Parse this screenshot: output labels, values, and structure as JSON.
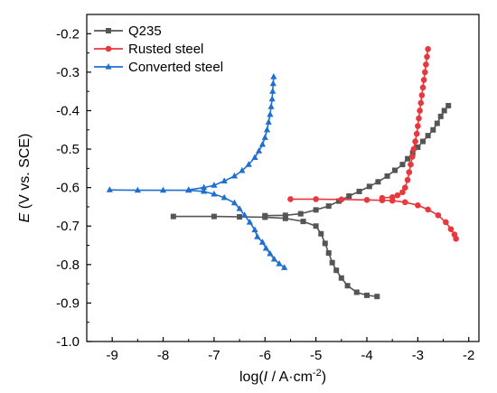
{
  "chart_data": {
    "type": "line",
    "xlabel_prefix": "log(",
    "xlabel_italic": "I",
    "xlabel_suffix": " / A·cm",
    "xlabel_sup": "-2",
    "xlabel_close": ")",
    "ylabel_italic": "E",
    "ylabel_rest": " (V vs. SCE)",
    "xlim": [
      -9.5,
      -1.8
    ],
    "ylim": [
      -1.0,
      -0.15
    ],
    "xticks": [
      -9,
      -8,
      -7,
      -6,
      -5,
      -4,
      -3,
      -2
    ],
    "xtick_labels": [
      "-9",
      "-8",
      "-7",
      "-6",
      "-5",
      "-4",
      "-3",
      "-2"
    ],
    "yticks": [
      -1.0,
      -0.9,
      -0.8,
      -0.7,
      -0.6,
      -0.5,
      -0.4,
      -0.3,
      -0.2
    ],
    "ytick_labels": [
      "-1.0",
      "-0.9",
      "-0.8",
      "-0.7",
      "-0.6",
      "-0.5",
      "-0.4",
      "-0.3",
      "-0.2"
    ],
    "legend_position": "top-left",
    "grid": false,
    "series": [
      {
        "name": "Q235",
        "color": "#555555",
        "marker": "square",
        "points": [
          [
            -7.8,
            -0.675
          ],
          [
            -7.0,
            -0.675
          ],
          [
            -6.5,
            -0.676
          ],
          [
            -6.0,
            -0.677
          ],
          [
            -5.6,
            -0.68
          ],
          [
            -5.25,
            -0.688
          ],
          [
            -5.0,
            -0.7
          ],
          [
            -4.9,
            -0.72
          ],
          [
            -4.82,
            -0.745
          ],
          [
            -4.75,
            -0.77
          ],
          [
            -4.68,
            -0.795
          ],
          [
            -4.6,
            -0.815
          ],
          [
            -4.5,
            -0.835
          ],
          [
            -4.38,
            -0.855
          ],
          [
            -4.2,
            -0.872
          ],
          [
            -4.0,
            -0.88
          ],
          [
            -3.8,
            -0.883
          ],
          [
            -6.0,
            -0.673
          ],
          [
            -5.6,
            -0.672
          ],
          [
            -5.3,
            -0.668
          ],
          [
            -5.0,
            -0.658
          ],
          [
            -4.75,
            -0.648
          ],
          [
            -4.55,
            -0.635
          ],
          [
            -4.35,
            -0.622
          ],
          [
            -4.15,
            -0.61
          ],
          [
            -3.95,
            -0.597
          ],
          [
            -3.78,
            -0.585
          ],
          [
            -3.6,
            -0.57
          ],
          [
            -3.45,
            -0.555
          ],
          [
            -3.3,
            -0.54
          ],
          [
            -3.2,
            -0.525
          ],
          [
            -3.1,
            -0.51
          ],
          [
            -3.0,
            -0.495
          ],
          [
            -2.9,
            -0.48
          ],
          [
            -2.8,
            -0.465
          ],
          [
            -2.7,
            -0.45
          ],
          [
            -2.62,
            -0.433
          ],
          [
            -2.55,
            -0.415
          ],
          [
            -2.48,
            -0.4
          ],
          [
            -2.4,
            -0.387
          ]
        ],
        "segments": [
          [
            0,
            16
          ],
          [
            17,
            39
          ]
        ]
      },
      {
        "name": "Rusted steel",
        "color": "#e8383d",
        "marker": "circle",
        "points": [
          [
            -5.5,
            -0.63
          ],
          [
            -5.0,
            -0.63
          ],
          [
            -4.5,
            -0.631
          ],
          [
            -4.0,
            -0.632
          ],
          [
            -3.7,
            -0.633
          ],
          [
            -3.5,
            -0.634
          ],
          [
            -3.25,
            -0.638
          ],
          [
            -3.0,
            -0.646
          ],
          [
            -2.8,
            -0.657
          ],
          [
            -2.6,
            -0.672
          ],
          [
            -2.45,
            -0.69
          ],
          [
            -2.35,
            -0.708
          ],
          [
            -2.28,
            -0.722
          ],
          [
            -2.25,
            -0.733
          ],
          [
            -3.7,
            -0.627
          ],
          [
            -3.5,
            -0.625
          ],
          [
            -3.4,
            -0.62
          ],
          [
            -3.3,
            -0.612
          ],
          [
            -3.25,
            -0.6
          ],
          [
            -3.2,
            -0.58
          ],
          [
            -3.17,
            -0.56
          ],
          [
            -3.14,
            -0.54
          ],
          [
            -3.11,
            -0.52
          ],
          [
            -3.08,
            -0.5
          ],
          [
            -3.05,
            -0.48
          ],
          [
            -3.02,
            -0.46
          ],
          [
            -3.0,
            -0.44
          ],
          [
            -2.98,
            -0.42
          ],
          [
            -2.96,
            -0.4
          ],
          [
            -2.94,
            -0.38
          ],
          [
            -2.92,
            -0.36
          ],
          [
            -2.9,
            -0.34
          ],
          [
            -2.88,
            -0.32
          ],
          [
            -2.86,
            -0.3
          ],
          [
            -2.84,
            -0.28
          ],
          [
            -2.82,
            -0.26
          ],
          [
            -2.8,
            -0.24
          ]
        ],
        "segments": [
          [
            0,
            13
          ],
          [
            14,
            36
          ]
        ]
      },
      {
        "name": "Converted steel",
        "color": "#1f6fd0",
        "marker": "triangle",
        "points": [
          [
            -9.05,
            -0.606
          ],
          [
            -8.5,
            -0.607
          ],
          [
            -8.0,
            -0.607
          ],
          [
            -7.5,
            -0.607
          ],
          [
            -7.2,
            -0.61
          ],
          [
            -7.0,
            -0.617
          ],
          [
            -6.8,
            -0.626
          ],
          [
            -6.6,
            -0.64
          ],
          [
            -6.5,
            -0.655
          ],
          [
            -6.4,
            -0.672
          ],
          [
            -6.3,
            -0.69
          ],
          [
            -6.2,
            -0.71
          ],
          [
            -6.15,
            -0.728
          ],
          [
            -6.05,
            -0.742
          ],
          [
            -5.98,
            -0.758
          ],
          [
            -5.9,
            -0.772
          ],
          [
            -5.82,
            -0.786
          ],
          [
            -5.72,
            -0.798
          ],
          [
            -5.62,
            -0.808
          ],
          [
            -7.5,
            -0.606
          ],
          [
            -7.2,
            -0.6
          ],
          [
            -7.0,
            -0.594
          ],
          [
            -6.8,
            -0.583
          ],
          [
            -6.6,
            -0.57
          ],
          [
            -6.45,
            -0.556
          ],
          [
            -6.32,
            -0.54
          ],
          [
            -6.2,
            -0.522
          ],
          [
            -6.12,
            -0.505
          ],
          [
            -6.05,
            -0.488
          ],
          [
            -6.0,
            -0.47
          ],
          [
            -5.96,
            -0.45
          ],
          [
            -5.93,
            -0.43
          ],
          [
            -5.9,
            -0.41
          ],
          [
            -5.88,
            -0.39
          ],
          [
            -5.86,
            -0.37
          ],
          [
            -5.85,
            -0.35
          ],
          [
            -5.84,
            -0.33
          ],
          [
            -5.83,
            -0.312
          ]
        ],
        "segments": [
          [
            0,
            18
          ],
          [
            19,
            37
          ]
        ]
      }
    ]
  }
}
